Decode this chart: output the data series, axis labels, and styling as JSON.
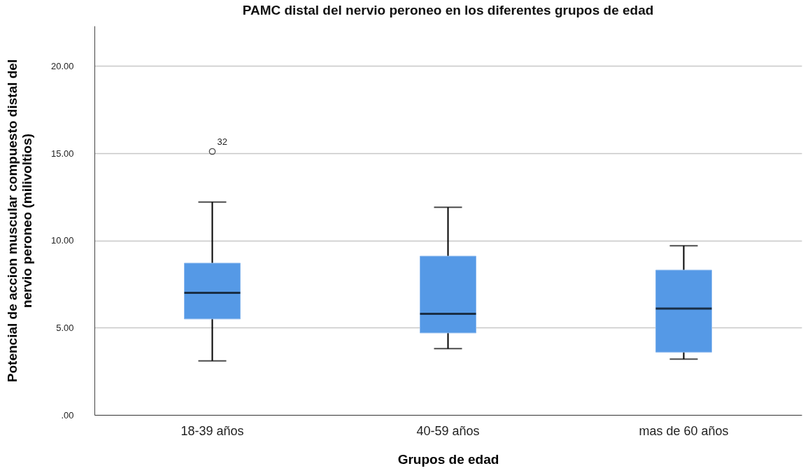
{
  "chart_data": {
    "type": "box",
    "title": "PAMC distal del nervio peroneo en los diferentes grupos de edad",
    "xlabel": "Grupos de edad",
    "ylabel": "Potencial de accion muscular compuesto distal del nervio peroneo (milivoltios)",
    "categories": [
      "18-39 años",
      "40-59 años",
      "mas de 60 años"
    ],
    "boxes": [
      {
        "low": 3.1,
        "q1": 5.5,
        "median": 7.0,
        "q3": 8.7,
        "high": 12.2,
        "outliers": [
          15.1
        ]
      },
      {
        "low": 3.8,
        "q1": 4.7,
        "median": 5.8,
        "q3": 9.1,
        "high": 11.9
      },
      {
        "low": 3.2,
        "q1": 3.6,
        "median": 6.1,
        "q3": 8.3,
        "high": 9.7
      }
    ],
    "color": "#5599e6",
    "ylim": [
      0,
      22.3
    ],
    "yticks": [
      {
        "value": 0,
        "label": ".00"
      },
      {
        "value": 5,
        "label": "5.00"
      },
      {
        "value": 10,
        "label": "10.00"
      },
      {
        "value": 15,
        "label": "15.00"
      },
      {
        "value": 20,
        "label": "20.00"
      }
    ],
    "grid": "y",
    "annotations": [
      "32"
    ]
  }
}
